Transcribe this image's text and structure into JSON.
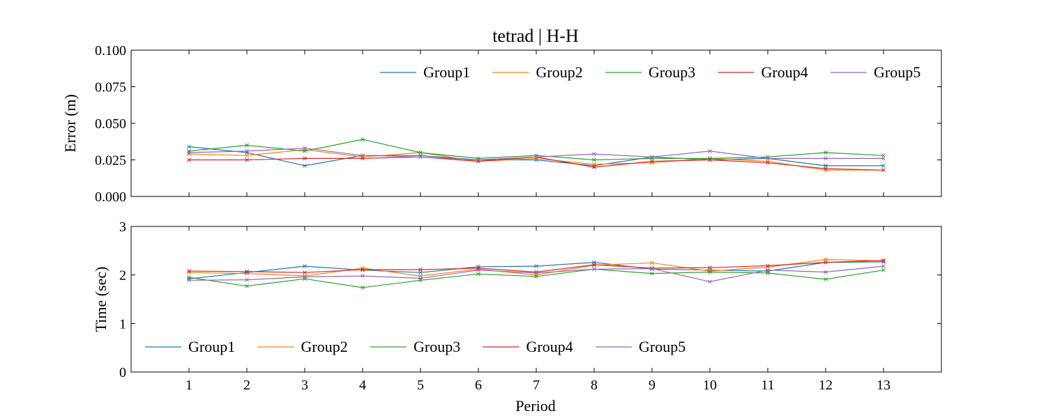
{
  "chart_data": {
    "title": "tetrad | H-H",
    "xlabel": "Period",
    "x": [
      1,
      2,
      3,
      4,
      5,
      6,
      7,
      8,
      9,
      10,
      11,
      12,
      13
    ],
    "xlim": [
      0,
      14
    ],
    "subplots": [
      {
        "type": "line",
        "ylabel": "Error (m)",
        "ylim": [
          0,
          0.1
        ],
        "yticks": [
          "0.000",
          "0.025",
          "0.050",
          "0.075",
          "0.100"
        ],
        "legend_position": "top-right",
        "series": [
          {
            "name": "Group1",
            "color": "#1f77b4",
            "values": [
              0.034,
              0.03,
              0.021,
              0.028,
              0.028,
              0.025,
              0.025,
              0.021,
              0.027,
              0.025,
              0.026,
              0.021,
              0.021
            ]
          },
          {
            "name": "Group2",
            "color": "#ff7f0e",
            "values": [
              0.029,
              0.028,
              0.032,
              0.027,
              0.03,
              0.024,
              0.026,
              0.022,
              0.023,
              0.026,
              0.024,
              0.018,
              0.018
            ]
          },
          {
            "name": "Group3",
            "color": "#2ca02c",
            "values": [
              0.031,
              0.035,
              0.031,
              0.039,
              0.03,
              0.026,
              0.028,
              0.025,
              0.026,
              0.026,
              0.027,
              0.03,
              0.028
            ]
          },
          {
            "name": "Group4",
            "color": "#d62728",
            "values": [
              0.025,
              0.025,
              0.026,
              0.026,
              0.027,
              0.024,
              0.027,
              0.02,
              0.024,
              0.025,
              0.023,
              0.019,
              0.018
            ]
          },
          {
            "name": "Group5",
            "color": "#9467bd",
            "values": [
              0.03,
              0.031,
              0.033,
              0.028,
              0.027,
              0.025,
              0.027,
              0.029,
              0.027,
              0.031,
              0.026,
              0.026,
              0.026
            ]
          }
        ]
      },
      {
        "type": "line",
        "ylabel": "Time (sec)",
        "ylim": [
          0,
          3
        ],
        "yticks": [
          "0",
          "1",
          "2",
          "3"
        ],
        "legend_position": "bottom-left",
        "series": [
          {
            "name": "Group1",
            "color": "#1f77b4",
            "values": [
              1.92,
              2.05,
              2.18,
              2.1,
              2.05,
              2.17,
              2.18,
              2.26,
              2.12,
              2.1,
              2.08,
              2.26,
              2.27
            ]
          },
          {
            "name": "Group2",
            "color": "#ff7f0e",
            "values": [
              2.05,
              2.03,
              1.98,
              2.14,
              1.98,
              2.12,
              2.0,
              2.2,
              2.25,
              2.08,
              2.16,
              2.32,
              2.29
            ]
          },
          {
            "name": "Group3",
            "color": "#2ca02c",
            "values": [
              1.95,
              1.77,
              1.92,
              1.74,
              1.89,
              2.02,
              1.97,
              2.12,
              2.03,
              2.06,
              2.04,
              1.91,
              2.1
            ]
          },
          {
            "name": "Group4",
            "color": "#d62728",
            "values": [
              2.08,
              2.07,
              2.05,
              2.11,
              2.11,
              2.14,
              2.06,
              2.21,
              2.14,
              2.15,
              2.19,
              2.26,
              2.3
            ]
          },
          {
            "name": "Group5",
            "color": "#9467bd",
            "values": [
              1.89,
              1.9,
              1.96,
              1.98,
              1.93,
              2.1,
              2.04,
              2.12,
              2.13,
              1.86,
              2.1,
              2.06,
              2.18
            ]
          }
        ]
      }
    ]
  }
}
